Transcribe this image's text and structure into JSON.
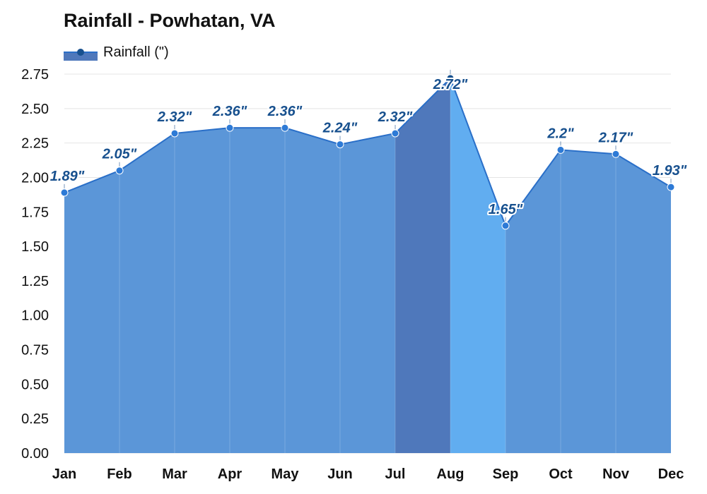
{
  "chart_data": {
    "type": "area",
    "title": "Rainfall - Powhatan, VA",
    "legend": {
      "position": "top-left",
      "entries": [
        "Rainfall (\")"
      ]
    },
    "categories": [
      "Jan",
      "Feb",
      "Mar",
      "Apr",
      "May",
      "Jun",
      "Jul",
      "Aug",
      "Sep",
      "Oct",
      "Nov",
      "Dec"
    ],
    "series": [
      {
        "name": "Rainfall (\")",
        "values": [
          1.89,
          2.05,
          2.32,
          2.36,
          2.36,
          2.24,
          2.32,
          2.72,
          1.65,
          2.2,
          2.17,
          1.93
        ],
        "labels": [
          "1.89\"",
          "2.05\"",
          "2.32\"",
          "2.36\"",
          "2.36\"",
          "2.24\"",
          "2.32\"",
          "2.72\"",
          "1.65\"",
          "2.2\"",
          "2.17\"",
          "1.93\""
        ]
      }
    ],
    "yticks": [
      "0.00",
      "0.25",
      "0.50",
      "0.75",
      "1.00",
      "1.25",
      "1.50",
      "1.75",
      "2.00",
      "2.25",
      "2.50",
      "2.75"
    ],
    "ylim": [
      0,
      2.75
    ],
    "grid": true,
    "highlighted_segment": [
      "Jul",
      "Aug"
    ],
    "light_segment": [
      "Aug",
      "Sep"
    ]
  },
  "colors": {
    "area": "#5b96d8",
    "area_highlight": "#4f78bb",
    "area_light": "#61adf0",
    "line": "#2a6fc8",
    "point": "#2d7ad6",
    "label": "#17508e",
    "grid": "#e4e4e4"
  }
}
